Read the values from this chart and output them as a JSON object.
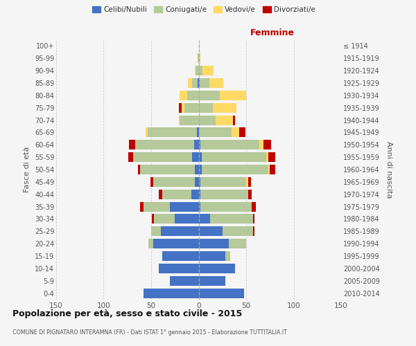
{
  "age_groups": [
    "0-4",
    "5-9",
    "10-14",
    "15-19",
    "20-24",
    "25-29",
    "30-34",
    "35-39",
    "40-44",
    "45-49",
    "50-54",
    "55-59",
    "60-64",
    "65-69",
    "70-74",
    "75-79",
    "80-84",
    "85-89",
    "90-94",
    "95-99",
    "100+"
  ],
  "birth_years": [
    "2010-2014",
    "2005-2009",
    "2000-2004",
    "1995-1999",
    "1990-1994",
    "1985-1989",
    "1980-1984",
    "1975-1979",
    "1970-1974",
    "1965-1969",
    "1960-1964",
    "1955-1959",
    "1950-1954",
    "1945-1949",
    "1940-1944",
    "1935-1939",
    "1930-1934",
    "1925-1929",
    "1920-1924",
    "1915-1919",
    "≤ 1914"
  ],
  "maschi": {
    "celibi": [
      58,
      30,
      42,
      38,
      48,
      40,
      25,
      30,
      8,
      4,
      4,
      7,
      5,
      2,
      0,
      0,
      0,
      1,
      0,
      0,
      0
    ],
    "coniugati": [
      0,
      0,
      0,
      0,
      5,
      10,
      22,
      28,
      30,
      44,
      58,
      62,
      62,
      52,
      20,
      15,
      12,
      6,
      3,
      1,
      0
    ],
    "vedovi": [
      0,
      0,
      0,
      0,
      0,
      0,
      0,
      0,
      0,
      0,
      0,
      0,
      0,
      2,
      1,
      3,
      8,
      4,
      1,
      0,
      0
    ],
    "divorziati": [
      0,
      0,
      0,
      0,
      0,
      0,
      2,
      4,
      4,
      3,
      2,
      5,
      6,
      0,
      0,
      3,
      0,
      0,
      0,
      0,
      0
    ]
  },
  "femmine": {
    "nubili": [
      48,
      28,
      38,
      28,
      32,
      25,
      12,
      2,
      2,
      2,
      3,
      3,
      2,
      0,
      0,
      0,
      0,
      1,
      0,
      0,
      0
    ],
    "coniugate": [
      0,
      0,
      0,
      5,
      18,
      32,
      45,
      54,
      50,
      48,
      70,
      68,
      62,
      35,
      18,
      15,
      22,
      10,
      4,
      0,
      0
    ],
    "vedove": [
      0,
      0,
      0,
      0,
      0,
      0,
      0,
      0,
      0,
      2,
      2,
      2,
      4,
      8,
      18,
      25,
      28,
      15,
      12,
      2,
      1
    ],
    "divorziate": [
      0,
      0,
      0,
      0,
      0,
      2,
      2,
      4,
      4,
      3,
      6,
      8,
      8,
      6,
      2,
      0,
      0,
      0,
      0,
      0,
      0
    ]
  },
  "colors": {
    "celibi_nubili": "#4472c4",
    "coniugati": "#b5c99a",
    "vedovi": "#ffd966",
    "divorziati": "#c00000"
  },
  "xlim": 150,
  "title": "Popolazione per età, sesso e stato civile - 2015",
  "subtitle": "COMUNE DI PIGNATARO INTERAMNA (FR) - Dati ISTAT 1° gennaio 2015 - Elaborazione TUTTITALIA.IT",
  "ylabel_left": "Fasce di età",
  "ylabel_right": "Anni di nascita",
  "legend_labels": [
    "Celibi/Nubili",
    "Coniugati/e",
    "Vedovi/e",
    "Divorziati/e"
  ],
  "bg_color": "#f5f5f5",
  "grid_color": "#cccccc"
}
